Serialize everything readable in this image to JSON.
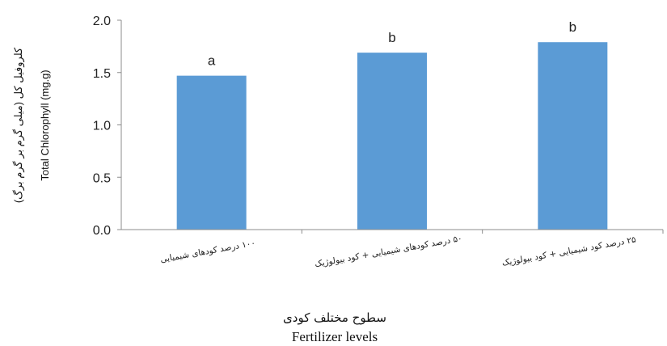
{
  "chart_data": {
    "type": "bar",
    "categories": [
      "۱۰۰ درصد کودهای شیمیایی",
      "۵۰ درصد کودهای شیمیایی + کود بیولوژیک",
      "۲۵ درصد کود شیمیایی + کود بیولوژیک"
    ],
    "values": [
      1.47,
      1.69,
      1.79
    ],
    "significance_letters": [
      "a",
      "b",
      "b"
    ],
    "ylim": [
      0,
      2.0
    ],
    "yticks": [
      "0.0",
      "0.5",
      "1.0",
      "1.5",
      "2.0"
    ],
    "ylabel_fa": "کلروفیل کل (میلی گرم بر گرم برگ)",
    "ylabel_en": "Total Chlorophyll (mg.g)",
    "xlabel_fa": "سطوح مختلف کودی",
    "xlabel_en": "Fertilizer levels",
    "bar_color": "#5b9bd5",
    "grid": false
  }
}
